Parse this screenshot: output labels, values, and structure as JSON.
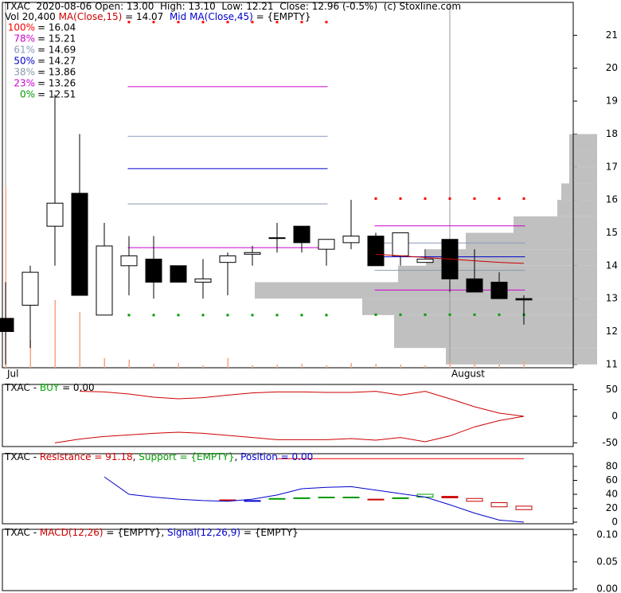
{
  "chart_data": [
    {
      "type": "candlestick",
      "header": [
        {
          "text": "TXAC  2020-08-06 Open: 13.00  High: 13.10  Low: 12.21  Close: 12.96 (-0.5%)  (c) Stoxline.com",
          "color": "#000000"
        }
      ],
      "legend": [
        {
          "text": "Vol 20,400",
          "color": "#000000"
        },
        {
          "text": " MA(Close,15)",
          "color": "#cc0000"
        },
        {
          "text": " = 14.07",
          "color": "#000000"
        },
        {
          "text": "  Mid MA(Close,45)",
          "color": "#0000cc"
        },
        {
          "text": " = {EMPTY}",
          "color": "#000000"
        }
      ],
      "categories": [
        "Jul",
        null,
        null,
        null,
        null,
        null,
        null,
        null,
        null,
        null,
        null,
        null,
        null,
        null,
        null,
        null,
        null,
        null,
        "August",
        null,
        null,
        null
      ],
      "open": [
        12.4,
        12.8,
        15.2,
        16.2,
        12.5,
        14.0,
        14.2,
        14.0,
        13.5,
        14.1,
        14.35,
        14.85,
        15.2,
        14.5,
        14.7,
        14.9,
        14.3,
        14.1,
        14.8,
        13.6,
        13.5,
        13.0
      ],
      "high": [
        13.5,
        14.0,
        19.2,
        18.0,
        15.3,
        14.9,
        14.9,
        14.0,
        14.2,
        14.4,
        14.6,
        15.3,
        15.2,
        14.8,
        16.0,
        15.0,
        15.0,
        14.5,
        14.8,
        14.5,
        13.8,
        13.1
      ],
      "low": [
        11.0,
        11.5,
        14.0,
        13.1,
        12.5,
        13.1,
        13.0,
        13.5,
        13.0,
        13.1,
        14.0,
        14.4,
        14.4,
        14.0,
        14.5,
        14.0,
        14.0,
        14.1,
        13.2,
        13.2,
        13.0,
        12.21
      ],
      "close": [
        12.0,
        13.8,
        15.9,
        13.1,
        14.6,
        14.3,
        13.5,
        13.5,
        13.6,
        14.3,
        14.4,
        14.85,
        14.7,
        14.8,
        14.9,
        14.0,
        15.0,
        14.2,
        13.6,
        13.2,
        13.0,
        12.96
      ],
      "volume": [
        579000,
        89000,
        217000,
        179000,
        31000,
        26000,
        13000,
        15000,
        8000,
        31000,
        8000,
        10000,
        13000,
        8000,
        15000,
        13000,
        10000,
        8000,
        20000,
        15000,
        10000,
        20400
      ],
      "volume_lim": [
        0,
        1170000
      ],
      "ma15": [
        null,
        null,
        null,
        null,
        null,
        null,
        null,
        null,
        null,
        null,
        null,
        null,
        null,
        null,
        null,
        14.35,
        14.3,
        14.25,
        14.2,
        14.15,
        14.1,
        14.07
      ],
      "profile_bins": [
        11,
        11.5,
        12,
        12.5,
        13,
        13.5,
        14,
        14.5,
        15,
        15.5,
        16,
        16.5,
        17,
        17.5,
        18
      ],
      "profile_values": [
        190,
        255,
        255,
        295,
        430,
        250,
        215,
        165,
        105,
        50,
        45,
        35,
        35,
        35
      ],
      "profile_lim": [
        0,
        750
      ],
      "fib_levels": [
        {
          "label": "100%",
          "value": 16.04,
          "value_label": "= 16.04",
          "color": "#ff0000"
        },
        {
          "label": "78%",
          "value": 15.21,
          "value_label": "= 15.21",
          "color": "#cc00cc"
        },
        {
          "label": "61%",
          "value": 14.69,
          "value_label": "= 14.69",
          "color": "#8899bb"
        },
        {
          "label": "50%",
          "value": 14.27,
          "value_label": "= 14.27",
          "color": "#0000cc"
        },
        {
          "label": "38%",
          "value": 13.86,
          "value_label": "= 13.86",
          "color": "#8899aa"
        },
        {
          "label": "23%",
          "value": 13.26,
          "value_label": "= 13.26",
          "color": "#cc00cc"
        },
        {
          "label": "0%",
          "value": 12.51,
          "value_label": "= 12.51",
          "color": "#009900"
        }
      ],
      "prior_fib_values": [
        21.4,
        19.44,
        17.93,
        16.95,
        15.88,
        14.55,
        12.5
      ],
      "ylim": [
        10.9,
        22
      ],
      "yticks": [
        11,
        12,
        13,
        14,
        15,
        16,
        17,
        18,
        19,
        20,
        21
      ]
    },
    {
      "type": "line",
      "header": [
        {
          "text": "TXAC - ",
          "color": "#000000"
        },
        {
          "text": "BUY",
          "color": "#00aa00"
        },
        {
          "text": " = 0.00",
          "color": "#000000"
        }
      ],
      "series": [
        {
          "color": "#cc0000",
          "values": [
            null,
            null,
            null,
            47,
            46,
            42,
            36,
            33,
            35,
            40,
            44,
            46,
            46,
            45,
            45,
            47,
            40,
            47,
            33,
            18,
            6,
            0
          ]
        },
        {
          "color": "#cc0000",
          "values": [
            null,
            null,
            -50,
            -43,
            -38,
            -35,
            -32,
            -30,
            -32,
            -36,
            -40,
            -44,
            -44,
            -44,
            -42,
            -45,
            -40,
            -48,
            -37,
            -20,
            -8,
            0
          ]
        }
      ],
      "ylim": [
        -57,
        60
      ],
      "yticks": [
        -50,
        0,
        50
      ]
    },
    {
      "type": "line",
      "header": [
        {
          "text": "TXAC - ",
          "color": "#000000"
        },
        {
          "text": "Resistance = 91.18",
          "color": "#cc0000"
        },
        {
          "text": ", ",
          "color": "#000000"
        },
        {
          "text": "Support = {EMPTY}",
          "color": "#009900"
        },
        {
          "text": ", ",
          "color": "#000000"
        },
        {
          "text": "Position = 0.00",
          "color": "#0000cc"
        }
      ],
      "resistance": 91.18,
      "resistance_color": "#ee0000",
      "series": [
        {
          "color": "#0000cc",
          "values": [
            null,
            null,
            null,
            null,
            65,
            40,
            36,
            33,
            31,
            30,
            33,
            39,
            48,
            50,
            51,
            46,
            41,
            36,
            25,
            13,
            3,
            0
          ]
        }
      ],
      "boxes": {
        "low": [
          null,
          null,
          null,
          null,
          null,
          null,
          null,
          null,
          null,
          31,
          30,
          33,
          34,
          35,
          35,
          32,
          34,
          36,
          35,
          30,
          22,
          18
        ],
        "high": [
          null,
          null,
          null,
          null,
          null,
          null,
          null,
          null,
          null,
          32,
          31,
          34,
          35,
          36,
          36,
          33,
          35,
          40,
          37,
          34,
          28,
          23
        ],
        "colors": [
          null,
          null,
          null,
          null,
          null,
          null,
          null,
          null,
          null,
          "#cc0000",
          "#0000cc",
          "#009900",
          "#009900",
          "#009900",
          "#009900",
          "#cc0000",
          "#009900",
          "#009900",
          "#cc0000",
          "#cc0000",
          "#cc0000",
          "#cc0000"
        ]
      },
      "ylim": [
        -2.3,
        98.3
      ],
      "yticks": [
        0,
        20,
        40,
        60,
        80
      ]
    },
    {
      "type": "line",
      "header": [
        {
          "text": "TXAC - ",
          "color": "#000000"
        },
        {
          "text": "MACD(12,26)",
          "color": "#cc0000"
        },
        {
          "text": " = {EMPTY}, ",
          "color": "#000000"
        },
        {
          "text": "Signal(12,26,9)",
          "color": "#0000cc"
        },
        {
          "text": " = {EMPTY}",
          "color": "#000000"
        }
      ],
      "series": [],
      "ylim": [
        -0.003,
        0.11
      ],
      "yticks": [
        {
          "value": 0,
          "label": "0.00"
        },
        {
          "value": 0.05,
          "label": "0.05"
        },
        {
          "value": 0.1,
          "label": "0.10"
        }
      ]
    }
  ]
}
